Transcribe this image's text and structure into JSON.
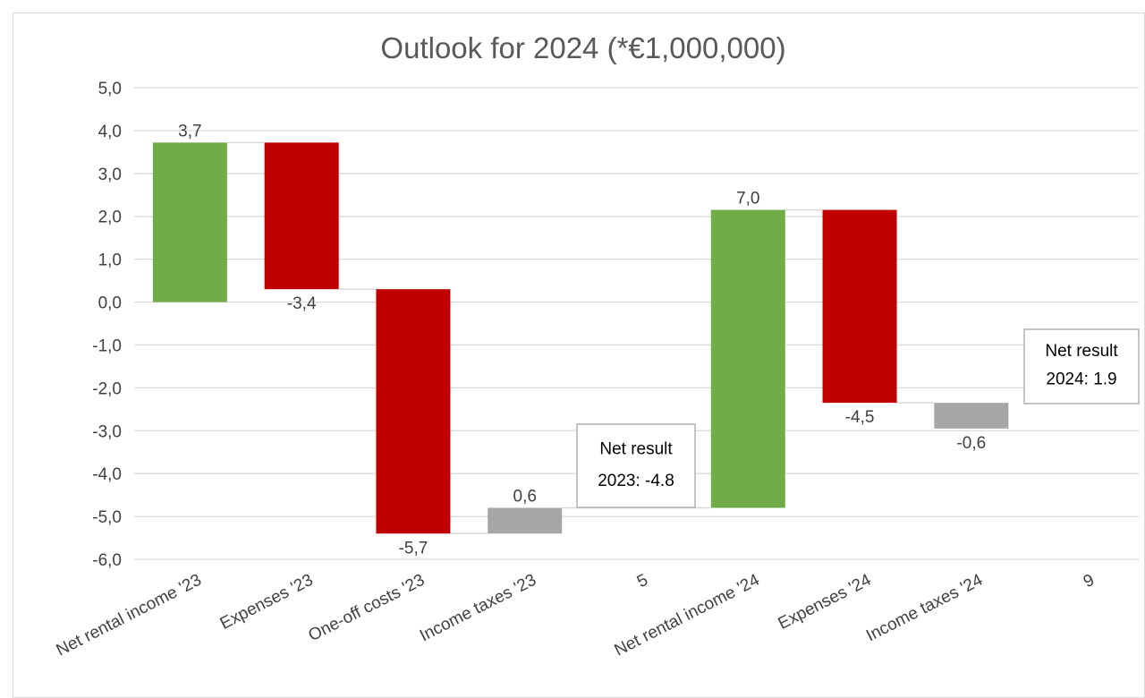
{
  "chart_data": {
    "type": "bar",
    "subtype": "waterfall",
    "title": "Outlook for 2024 (*€1,000,000)",
    "xlabel": "",
    "ylabel": "",
    "ylim": [
      -6.0,
      5.0
    ],
    "ytick_step": 1.0,
    "y_tick_labels": [
      "5,0",
      "4,0",
      "3,0",
      "2,0",
      "1,0",
      "0,0",
      "-1,0",
      "-2,0",
      "-3,0",
      "-4,0",
      "-5,0",
      "-6,0"
    ],
    "grid": true,
    "legend": "none",
    "categories": [
      "Net rental income '23",
      "Expenses '23",
      "One-off costs '23",
      "Income taxes '23",
      "5",
      "Net rental income '24",
      "Expenses '24",
      "Income taxes '24",
      "9"
    ],
    "bars": [
      {
        "start": 0.0,
        "end": 3.72,
        "color": "#70ad47",
        "label": "3,7",
        "label_pos": "top"
      },
      {
        "start": 3.72,
        "end": 0.3,
        "color": "#c00000",
        "label": "-3,4",
        "label_pos": "bottom"
      },
      {
        "start": 0.3,
        "end": -5.4,
        "color": "#c00000",
        "label": "-5,7",
        "label_pos": "bottom"
      },
      {
        "start": -5.4,
        "end": -4.8,
        "color": "#a6a6a6",
        "label": "0,6",
        "label_pos": "top"
      },
      null,
      {
        "start": -4.8,
        "end": 2.15,
        "color": "#70ad47",
        "label": "7,0",
        "label_pos": "top"
      },
      {
        "start": 2.15,
        "end": -2.35,
        "color": "#c00000",
        "label": "-4,5",
        "label_pos": "bottom"
      },
      {
        "start": -2.35,
        "end": -2.95,
        "color": "#a6a6a6",
        "label": "-0,6",
        "label_pos": "bottom"
      },
      null
    ],
    "annotations": [
      {
        "line1": "Net result",
        "line2": "2023: -4.8"
      },
      {
        "line1": "Net result",
        "line2": "2024: 1.9"
      }
    ],
    "colors": {
      "increase": "#70ad47",
      "decrease": "#c00000",
      "tax": "#a6a6a6",
      "gridline": "#d9d9d9",
      "connector": "#d9d9d9"
    }
  }
}
